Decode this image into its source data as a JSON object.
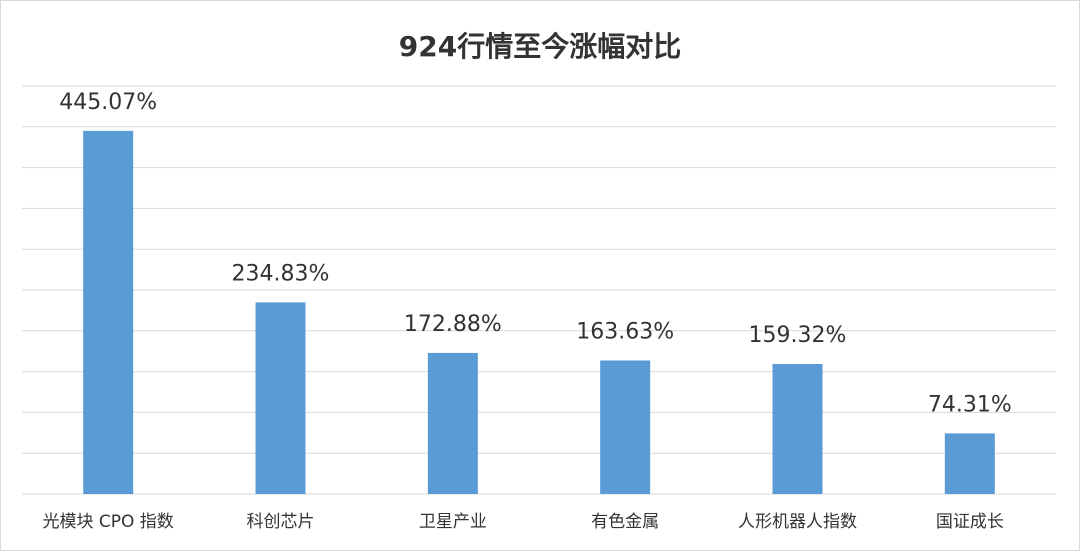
{
  "chart_data": {
    "type": "bar",
    "title": "924行情至今涨幅对比",
    "categories": [
      "光模块 CPO 指数",
      "科创芯片",
      "卫星产业",
      "有色金属",
      "人形机器人指数",
      "国证成长"
    ],
    "values": [
      445.07,
      234.83,
      172.88,
      163.63,
      159.32,
      74.31
    ],
    "value_labels": [
      "445.07%",
      "234.83%",
      "172.88%",
      "163.63%",
      "159.32%",
      "74.31%"
    ],
    "color": "#5b9bd5",
    "ylim": [
      0,
      500
    ],
    "yticks": [
      0,
      50,
      100,
      150,
      200,
      250,
      300,
      350,
      400,
      450,
      500
    ],
    "grid": true
  }
}
